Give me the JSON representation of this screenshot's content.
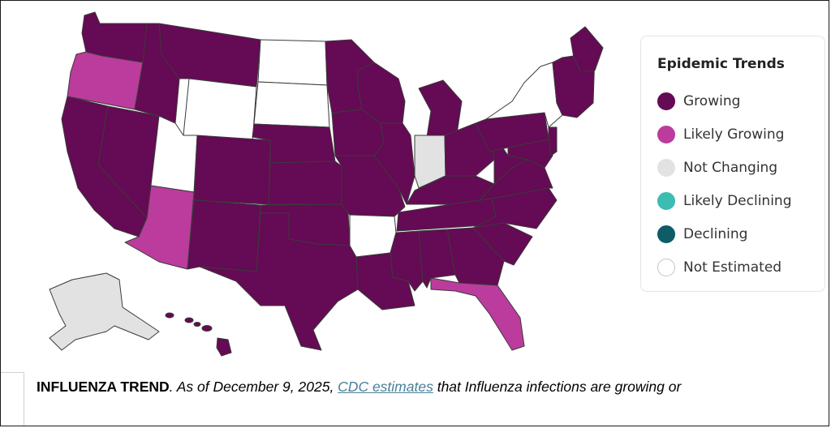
{
  "map": {
    "regions": [
      {
        "name": "Washington",
        "status": "Growing"
      },
      {
        "name": "Oregon",
        "status": "Likely Growing"
      },
      {
        "name": "California",
        "status": "Growing"
      },
      {
        "name": "Nevada",
        "status": "Growing"
      },
      {
        "name": "Idaho",
        "status": "Growing"
      },
      {
        "name": "Montana",
        "status": "Growing"
      },
      {
        "name": "Wyoming",
        "status": "Not Estimated"
      },
      {
        "name": "Utah",
        "status": "Not Estimated"
      },
      {
        "name": "Arizona",
        "status": "Likely Growing"
      },
      {
        "name": "Colorado",
        "status": "Growing"
      },
      {
        "name": "New Mexico",
        "status": "Growing"
      },
      {
        "name": "North Dakota",
        "status": "Not Estimated"
      },
      {
        "name": "South Dakota",
        "status": "Not Estimated"
      },
      {
        "name": "Nebraska",
        "status": "Growing"
      },
      {
        "name": "Kansas",
        "status": "Growing"
      },
      {
        "name": "Oklahoma",
        "status": "Growing"
      },
      {
        "name": "Texas",
        "status": "Growing"
      },
      {
        "name": "Minnesota",
        "status": "Growing"
      },
      {
        "name": "Iowa",
        "status": "Growing"
      },
      {
        "name": "Missouri",
        "status": "Growing"
      },
      {
        "name": "Arkansas",
        "status": "Not Estimated"
      },
      {
        "name": "Louisiana",
        "status": "Growing"
      },
      {
        "name": "Wisconsin",
        "status": "Growing"
      },
      {
        "name": "Illinois",
        "status": "Growing"
      },
      {
        "name": "Michigan",
        "status": "Growing"
      },
      {
        "name": "Indiana",
        "status": "Not Changing"
      },
      {
        "name": "Ohio",
        "status": "Growing"
      },
      {
        "name": "Kentucky",
        "status": "Growing"
      },
      {
        "name": "Tennessee",
        "status": "Growing"
      },
      {
        "name": "Mississippi",
        "status": "Growing"
      },
      {
        "name": "Alabama",
        "status": "Growing"
      },
      {
        "name": "Georgia",
        "status": "Growing"
      },
      {
        "name": "Florida",
        "status": "Likely Growing"
      },
      {
        "name": "South Carolina",
        "status": "Growing"
      },
      {
        "name": "North Carolina",
        "status": "Growing"
      },
      {
        "name": "Virginia",
        "status": "Growing"
      },
      {
        "name": "West Virginia",
        "status": "Growing"
      },
      {
        "name": "Pennsylvania",
        "status": "Growing"
      },
      {
        "name": "New York",
        "status": "Not Estimated"
      },
      {
        "name": "Maryland",
        "status": "Growing"
      },
      {
        "name": "New Jersey",
        "status": "Growing"
      },
      {
        "name": "New England",
        "status": "Growing"
      },
      {
        "name": "Maine",
        "status": "Growing"
      },
      {
        "name": "Alaska",
        "status": "Not Changing"
      },
      {
        "name": "Hawaii",
        "status": "Growing"
      }
    ]
  },
  "legend": {
    "title": "Epidemic Trends",
    "items": [
      {
        "label": "Growing",
        "color": "#650a54"
      },
      {
        "label": "Likely Growing",
        "color": "#bb3c9c"
      },
      {
        "label": "Not Changing",
        "color": "#e2e2e2"
      },
      {
        "label": "Likely Declining",
        "color": "#3dbcb2"
      },
      {
        "label": "Declining",
        "color": "#0d5c66"
      },
      {
        "label": "Not Estimated",
        "color": "#ffffff"
      }
    ]
  },
  "caption": {
    "bold": "INFLUENZA TREND",
    "text1": ". As of December 9, 2025, ",
    "link": "CDC estimates",
    "text2": " that Influenza infections are growing or"
  }
}
